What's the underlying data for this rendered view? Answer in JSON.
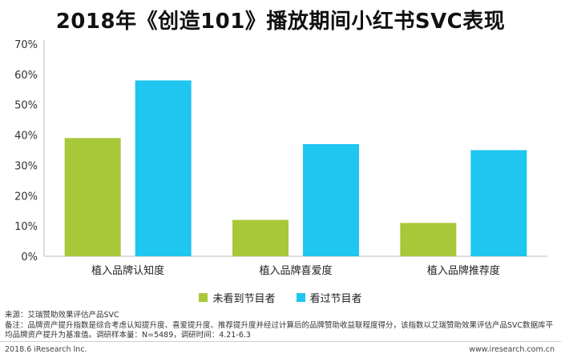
{
  "title": "2018年《创造101》播放期间小红书SVC表现",
  "colors": {
    "series1": "#a8c739",
    "series2": "#1ec6f0",
    "axis": "#bfbfbf"
  },
  "chart_data": {
    "type": "bar",
    "title": "2018年《创造101》播放期间小红书SVC表现",
    "categories": [
      "植入品牌认知度",
      "植入品牌喜爱度",
      "植入品牌推荐度"
    ],
    "series": [
      {
        "name": "未看到节目者",
        "values": [
          0.39,
          0.12,
          0.11
        ]
      },
      {
        "name": "看过节目者",
        "values": [
          0.58,
          0.37,
          0.35
        ]
      }
    ],
    "ylim": [
      0,
      0.7
    ],
    "yticks": [
      "0%",
      "10%",
      "20%",
      "30%",
      "40%",
      "50%",
      "60%",
      "70%"
    ],
    "grid": false,
    "legend": "bottom-center"
  },
  "legend": [
    "未看到节目者",
    "看过节目者"
  ],
  "notes": {
    "source": "来源：艾瑞赞助效果评估产品SVC",
    "remark": "备注：品牌资产提升指数是综合考虑认知提升度、喜爱提升度、推荐提升度并经过计算后的品牌赞助收益联程度得分，该指数以艾瑞赞助效果评估产品SVC数据库平均品牌资产提升为基准值。调研样本量：N=5489，调研时间：4.21-6.3"
  },
  "footer": {
    "left": "2018.6 iResearch Inc.",
    "right": "www.iresearch.com.cn"
  }
}
